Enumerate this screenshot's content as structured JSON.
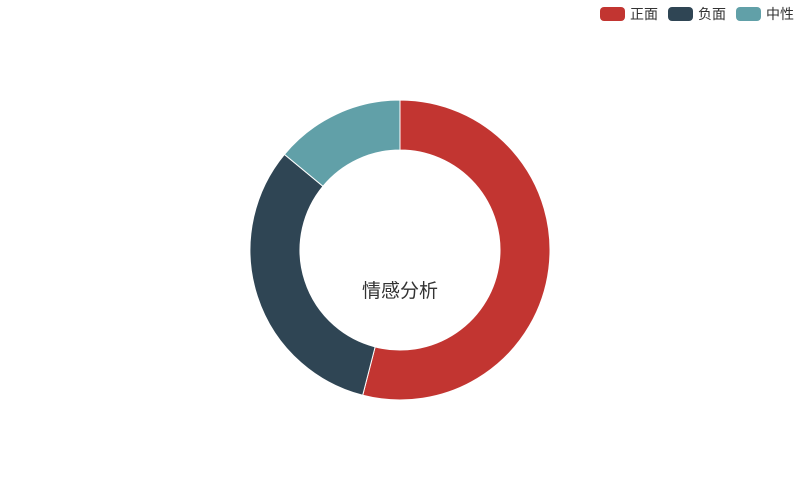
{
  "chart_data": {
    "type": "pie",
    "variant": "donut",
    "title": "",
    "center_label": "情感分析",
    "series": [
      {
        "name": "正面",
        "value": 54,
        "color": "#c23531"
      },
      {
        "name": "负面",
        "value": 32,
        "color": "#2f4554"
      },
      {
        "name": "中性",
        "value": 14,
        "color": "#61a0a8"
      }
    ],
    "legend_position": "top-right",
    "start_angle_deg": 90,
    "direction": "clockwise"
  }
}
